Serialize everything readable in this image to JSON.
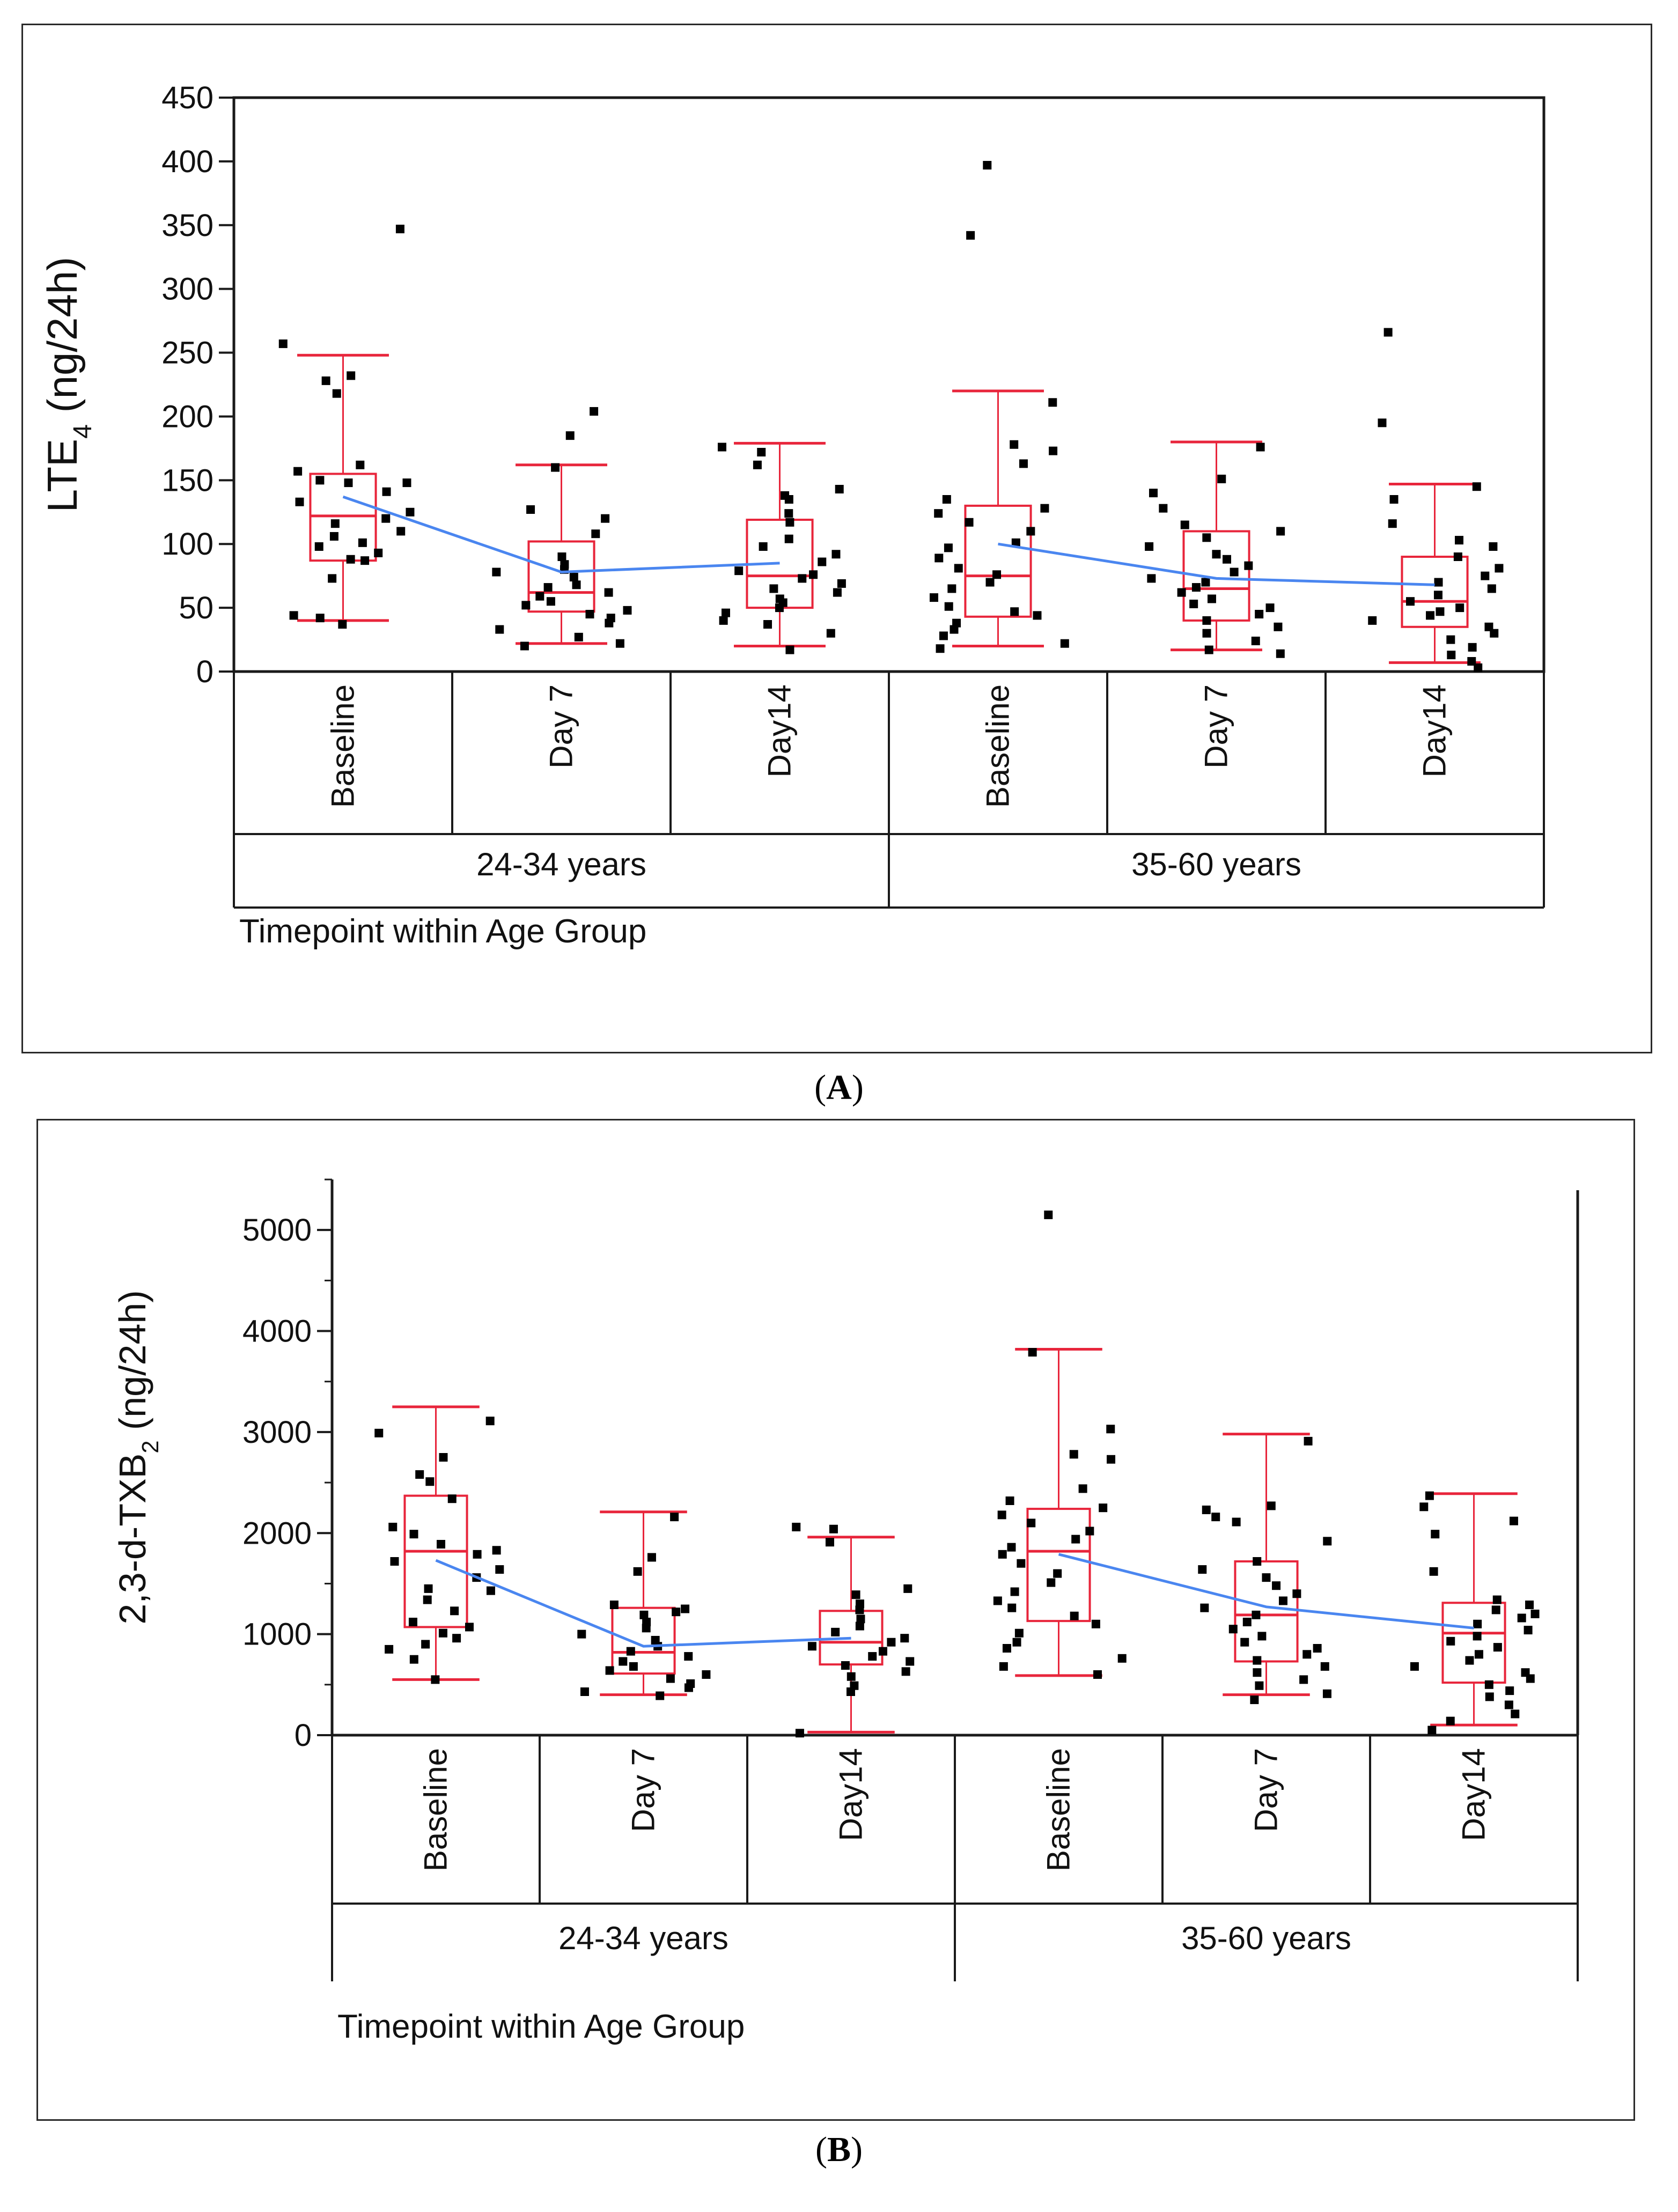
{
  "colors": {
    "box": "#e8253b",
    "mean_line": "#4a86f0",
    "points": "#000000",
    "frame": "#1a1a1a"
  },
  "chart_data": [
    {
      "type": "box",
      "panel_label": "A",
      "ylabel_main": "LTE",
      "ylabel_sub": "4",
      "ylabel_rest": " (ng/24h)",
      "xlabel": "Timepoint  within  Age Group",
      "ylim": [
        0,
        450
      ],
      "yticks": [
        0,
        50,
        100,
        150,
        200,
        250,
        300,
        350,
        400,
        450
      ],
      "groups": [
        "24-34 years",
        "35-60 years"
      ],
      "timepoints": [
        "Baseline",
        "Day 7",
        "Day14"
      ],
      "boxes": [
        {
          "group": "24-34 years",
          "timepoint": "Baseline",
          "whisker_low": 40,
          "q1": 87,
          "median": 122,
          "q3": 155,
          "whisker_high": 248,
          "mean": 137,
          "points": [
            347,
            257,
            232,
            228,
            218,
            162,
            157,
            150,
            148,
            148,
            141,
            133,
            125,
            120,
            116,
            110,
            106,
            101,
            98,
            93,
            88,
            87,
            73,
            44,
            42,
            37
          ]
        },
        {
          "group": "24-34 years",
          "timepoint": "Day 7",
          "whisker_low": 22,
          "q1": 47,
          "median": 62,
          "q3": 102,
          "whisker_high": 162,
          "mean": 78,
          "points": [
            204,
            185,
            160,
            127,
            120,
            108,
            90,
            84,
            80,
            78,
            74,
            68,
            66,
            62,
            59,
            55,
            52,
            48,
            45,
            42,
            38,
            33,
            27,
            22,
            20
          ]
        },
        {
          "group": "24-34 years",
          "timepoint": "Day14",
          "whisker_low": 20,
          "q1": 50,
          "median": 75,
          "q3": 119,
          "whisker_high": 179,
          "mean": 85,
          "points": [
            176,
            172,
            162,
            143,
            138,
            135,
            124,
            117,
            104,
            98,
            92,
            86,
            79,
            76,
            73,
            69,
            65,
            62,
            57,
            54,
            50,
            46,
            40,
            37,
            30,
            17
          ]
        },
        {
          "group": "35-60 years",
          "timepoint": "Baseline",
          "whisker_low": 20,
          "q1": 43,
          "median": 75,
          "q3": 130,
          "whisker_high": 220,
          "mean": 100,
          "points": [
            397,
            342,
            211,
            178,
            173,
            163,
            135,
            128,
            124,
            117,
            110,
            101,
            97,
            89,
            81,
            76,
            70,
            65,
            58,
            51,
            47,
            44,
            38,
            33,
            28,
            22,
            18
          ]
        },
        {
          "group": "35-60 years",
          "timepoint": "Day 7",
          "whisker_low": 17,
          "q1": 40,
          "median": 65,
          "q3": 110,
          "whisker_high": 180,
          "mean": 73,
          "points": [
            176,
            151,
            140,
            128,
            115,
            110,
            105,
            98,
            92,
            88,
            83,
            78,
            73,
            70,
            66,
            62,
            57,
            53,
            50,
            45,
            40,
            35,
            30,
            24,
            17,
            14
          ]
        },
        {
          "group": "35-60 years",
          "timepoint": "Day14",
          "whisker_low": 7,
          "q1": 35,
          "median": 55,
          "q3": 90,
          "whisker_high": 147,
          "mean": 68,
          "points": [
            266,
            195,
            145,
            135,
            116,
            103,
            98,
            90,
            81,
            75,
            70,
            65,
            60,
            55,
            50,
            47,
            44,
            40,
            35,
            30,
            25,
            19,
            13,
            8,
            3
          ]
        }
      ]
    },
    {
      "type": "box",
      "panel_label": "B",
      "ylabel_main": "2,3-d-TXB",
      "ylabel_sub": "2",
      "ylabel_rest": "  (ng/24h)",
      "xlabel": "Timepoint  within  Age Group",
      "ylim": [
        0,
        5500
      ],
      "yticks": [
        0,
        1000,
        2000,
        3000,
        4000,
        5000
      ],
      "groups": [
        "24-34 years",
        "35-60 years"
      ],
      "timepoints": [
        "Baseline",
        "Day 7",
        "Day14"
      ],
      "boxes": [
        {
          "group": "24-34 years",
          "timepoint": "Baseline",
          "whisker_low": 550,
          "q1": 1070,
          "median": 1820,
          "q3": 2370,
          "whisker_high": 3250,
          "mean": 1730,
          "points": [
            3110,
            2990,
            2750,
            2580,
            2510,
            2340,
            2060,
            1990,
            1890,
            1830,
            1790,
            1720,
            1640,
            1560,
            1450,
            1430,
            1340,
            1230,
            1120,
            1070,
            1010,
            960,
            900,
            850,
            750,
            550
          ]
        },
        {
          "group": "24-34 years",
          "timepoint": "Day 7",
          "whisker_low": 400,
          "q1": 610,
          "median": 820,
          "q3": 1260,
          "whisker_high": 2210,
          "mean": 880,
          "points": [
            2160,
            1760,
            1620,
            1290,
            1250,
            1220,
            1190,
            1120,
            1060,
            1000,
            940,
            880,
            830,
            780,
            730,
            680,
            640,
            600,
            560,
            510,
            470,
            430,
            390
          ]
        },
        {
          "group": "24-34 years",
          "timepoint": "Day14",
          "whisker_low": 30,
          "q1": 700,
          "median": 920,
          "q3": 1230,
          "whisker_high": 1960,
          "mean": 960,
          "points": [
            2060,
            2040,
            1910,
            1450,
            1390,
            1300,
            1240,
            1150,
            1080,
            1020,
            960,
            920,
            880,
            830,
            780,
            730,
            690,
            630,
            580,
            490,
            430,
            20
          ]
        },
        {
          "group": "35-60 years",
          "timepoint": "Baseline",
          "whisker_low": 590,
          "q1": 1130,
          "median": 1820,
          "q3": 2240,
          "whisker_high": 3820,
          "mean": 1790,
          "points": [
            5150,
            3790,
            3030,
            2780,
            2730,
            2440,
            2320,
            2250,
            2180,
            2100,
            2020,
            1940,
            1860,
            1790,
            1700,
            1600,
            1510,
            1420,
            1330,
            1260,
            1180,
            1100,
            1010,
            920,
            860,
            760,
            680,
            600
          ]
        },
        {
          "group": "35-60 years",
          "timepoint": "Day 7",
          "whisker_low": 400,
          "q1": 730,
          "median": 1190,
          "q3": 1720,
          "whisker_high": 2980,
          "mean": 1270,
          "points": [
            2910,
            2270,
            2230,
            2160,
            2110,
            1920,
            1720,
            1640,
            1560,
            1480,
            1400,
            1330,
            1260,
            1190,
            1120,
            1050,
            980,
            920,
            860,
            800,
            740,
            680,
            620,
            550,
            490,
            410,
            350
          ]
        },
        {
          "group": "35-60 years",
          "timepoint": "Day14",
          "whisker_low": 100,
          "q1": 520,
          "median": 1010,
          "q3": 1310,
          "whisker_high": 2390,
          "mean": 1060,
          "points": [
            2370,
            2260,
            2120,
            1990,
            1620,
            1340,
            1290,
            1240,
            1200,
            1160,
            1100,
            1040,
            980,
            930,
            870,
            800,
            740,
            680,
            620,
            560,
            500,
            440,
            380,
            300,
            210,
            140,
            50
          ]
        }
      ]
    }
  ]
}
